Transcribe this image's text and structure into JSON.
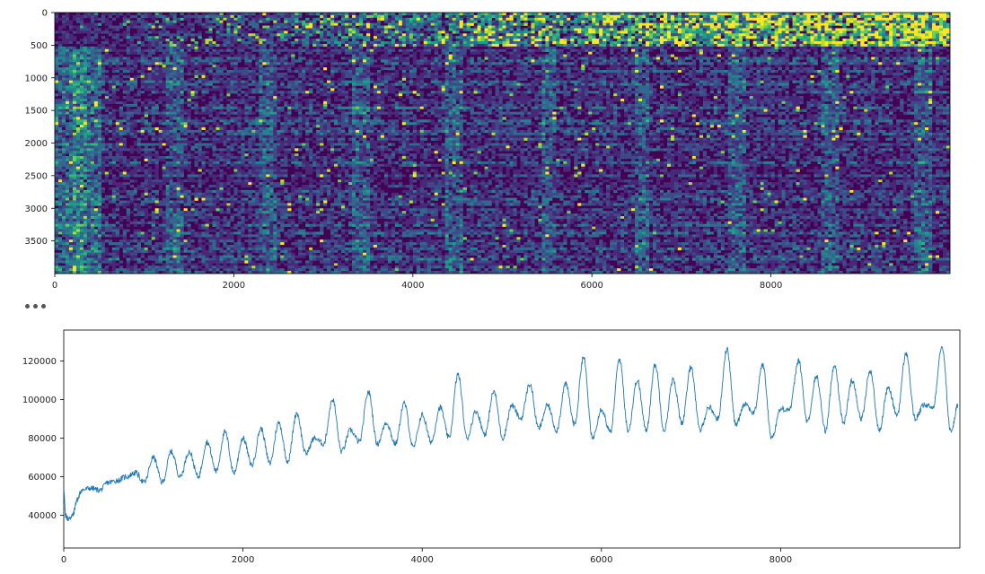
{
  "chart_data": [
    {
      "type": "heatmap",
      "title": "",
      "xlabel": "",
      "ylabel": "",
      "colormap": "viridis",
      "origin": "upper",
      "xlim": [
        0,
        10000
      ],
      "ylim": [
        4000,
        0
      ],
      "xticks": [
        0,
        2000,
        4000,
        6000,
        8000
      ],
      "yticks": [
        0,
        500,
        1000,
        1500,
        2000,
        2500,
        3000,
        3500
      ],
      "description_bands": [
        {
          "rows": [
            0,
            500
          ],
          "intensity": "high, increasing with x"
        },
        {
          "rows": [
            500,
            4000
          ],
          "intensity": "low with faint vertical streaks"
        }
      ],
      "colors": {
        "low": "#440154",
        "mid": "#21918c",
        "high": "#fde725"
      }
    },
    {
      "type": "line",
      "title": "",
      "xlabel": "",
      "ylabel": "",
      "xlim": [
        0,
        10000
      ],
      "ylim": [
        23000,
        136000
      ],
      "xticks": [
        0,
        2000,
        4000,
        6000,
        8000
      ],
      "yticks": [
        40000,
        60000,
        80000,
        100000,
        120000
      ],
      "line_color": "#1f77b4",
      "series": [
        {
          "x": [
            0,
            20,
            50,
            100,
            150,
            200,
            300,
            400,
            500,
            600,
            700,
            800,
            900,
            1000,
            1100,
            1200,
            1300,
            1400,
            1500,
            1600,
            1700,
            1800,
            1900,
            2000,
            2100,
            2200,
            2300,
            2400,
            2500,
            2600,
            2700,
            2800,
            2900,
            3000,
            3100,
            3200,
            3300,
            3400,
            3500,
            3600,
            3700,
            3800,
            3900,
            4000,
            4100,
            4200,
            4300,
            4400,
            4500,
            4600,
            4700,
            4800,
            4900,
            5000,
            5100,
            5200,
            5300,
            5400,
            5500,
            5600,
            5700,
            5800,
            5900,
            6000,
            6100,
            6200,
            6300,
            6400,
            6500,
            6600,
            6700,
            6800,
            6900,
            7000,
            7100,
            7200,
            7300,
            7400,
            7500,
            7600,
            7700,
            7800,
            7900,
            8000,
            8100,
            8200,
            8300,
            8400,
            8500,
            8600,
            8700,
            8800,
            8900,
            9000,
            9100,
            9200,
            9300,
            9400,
            9500,
            9600,
            9700,
            9800,
            9900,
            9980
          ],
          "y": [
            53000,
            40000,
            38000,
            40000,
            48000,
            53000,
            54000,
            53000,
            57000,
            58000,
            60000,
            62000,
            57000,
            70000,
            57000,
            73000,
            60000,
            73000,
            60000,
            78000,
            63000,
            83000,
            62000,
            80000,
            66000,
            85000,
            67000,
            88000,
            68000,
            93000,
            72000,
            80000,
            77000,
            100000,
            73000,
            84000,
            78000,
            104000,
            77000,
            88000,
            77000,
            98000,
            75000,
            92000,
            78000,
            96000,
            80000,
            113000,
            80000,
            94000,
            82000,
            104000,
            80000,
            97000,
            90000,
            108000,
            85000,
            97000,
            84000,
            108000,
            87000,
            122000,
            80000,
            95000,
            83000,
            121000,
            84000,
            110000,
            84000,
            118000,
            84000,
            110000,
            88000,
            117000,
            84000,
            96000,
            90000,
            126000,
            87000,
            98000,
            93000,
            118000,
            80000,
            95000,
            95000,
            120000,
            88000,
            112000,
            84000,
            118000,
            88000,
            110000,
            90000,
            115000,
            84000,
            106000,
            92000,
            124000,
            90000,
            97000,
            96000,
            128000,
            83000,
            97000
          ]
        }
      ]
    }
  ]
}
